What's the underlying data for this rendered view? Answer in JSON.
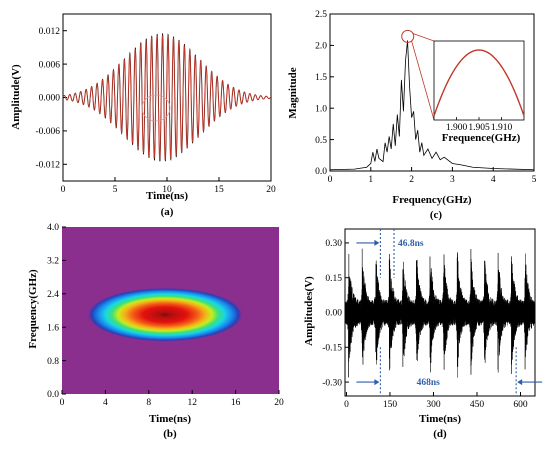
{
  "chart_data": [
    {
      "panel": "(a)",
      "type": "line",
      "xlabel": "Time(ns)",
      "ylabel": "Amplitude(V)",
      "xlim": [
        0,
        20
      ],
      "ylim": [
        -0.015,
        0.015
      ],
      "xticks": [
        0,
        5,
        10,
        15,
        20
      ],
      "yticks": [
        -0.012,
        -0.006,
        0.0,
        0.006,
        0.012
      ],
      "ytick_labels": [
        "-0.012",
        "-0.006",
        "0.000",
        "0.006",
        "0.012"
      ],
      "signal": {
        "carrier_ghz": 1.905,
        "center_ns": 9.5,
        "sigma_ns": 3.6,
        "peak_v": 0.0115
      },
      "series": [
        {
          "color": "#000000"
        },
        {
          "color": "#c0392b"
        }
      ]
    },
    {
      "panel": "(c)",
      "type": "line",
      "xlabel": "Frequency(GHz)",
      "ylabel": "Magnitude",
      "xlim": [
        0,
        5
      ],
      "ylim": [
        0,
        2.5
      ],
      "xticks": [
        0,
        1,
        2,
        3,
        4,
        5
      ],
      "yticks": [
        0.0,
        0.5,
        1.0,
        1.5,
        2.0,
        2.5
      ],
      "ytick_labels": [
        "0.0",
        "0.5",
        "1.0",
        "1.5",
        "2.0",
        "2.5"
      ],
      "x": [
        0.0,
        0.6,
        0.9,
        1.0,
        1.05,
        1.1,
        1.15,
        1.2,
        1.3,
        1.35,
        1.4,
        1.45,
        1.5,
        1.55,
        1.6,
        1.65,
        1.7,
        1.75,
        1.8,
        1.85,
        1.9,
        1.95,
        2.0,
        2.05,
        2.1,
        2.15,
        2.2,
        2.25,
        2.3,
        2.4,
        2.5,
        2.6,
        2.7,
        2.8,
        3.0,
        3.2,
        3.5,
        4.0,
        5.0
      ],
      "y": [
        0.02,
        0.03,
        0.06,
        0.12,
        0.3,
        0.15,
        0.35,
        0.2,
        0.15,
        0.45,
        0.3,
        0.55,
        0.35,
        0.75,
        0.4,
        0.9,
        0.55,
        1.45,
        0.95,
        1.75,
        2.08,
        1.35,
        0.85,
        0.95,
        0.5,
        0.65,
        0.3,
        0.45,
        0.25,
        0.35,
        0.2,
        0.3,
        0.18,
        0.22,
        0.12,
        0.1,
        0.06,
        0.04,
        0.02
      ],
      "color": "#000000",
      "highlight": {
        "x": 1.905,
        "y": 2.08,
        "color": "#c0392b"
      },
      "inset": {
        "xlabel": "Frequence(GHz)",
        "xlim": [
          1.895,
          1.915
        ],
        "xticks": [
          1.9,
          1.905,
          1.91
        ],
        "xtick_labels": [
          "1.900",
          "1.905",
          "1.910"
        ],
        "curve": {
          "type": "parabola",
          "vertex_x": 1.905,
          "color": "#c0392b"
        }
      }
    },
    {
      "panel": "(b)",
      "type": "heatmap",
      "xlabel": "Time(ns)",
      "ylabel": "Frequency(GHz)",
      "xlim": [
        0,
        20
      ],
      "ylim": [
        0,
        4
      ],
      "xticks": [
        0,
        4,
        8,
        12,
        16,
        20
      ],
      "yticks": [
        0.0,
        0.8,
        1.6,
        2.4,
        3.2,
        4.0
      ],
      "ytick_labels": [
        "0.0",
        "0.8",
        "1.6",
        "2.4",
        "3.2",
        "4.0"
      ],
      "blob": {
        "center_ns": 9.5,
        "center_ghz": 1.9,
        "half_width_ns": 7.2,
        "half_height_ghz": 0.65
      },
      "colors": {
        "background": "#8b2f8f",
        "levels": [
          "#1f2fa0",
          "#1a8ff0",
          "#19d8e0",
          "#3ee07a",
          "#e8ec1c",
          "#f7a11a",
          "#ee3a17",
          "#e51010",
          "#9a0f0f"
        ]
      }
    },
    {
      "panel": "(d)",
      "type": "line",
      "xlabel": "Time(ns)",
      "ylabel": "Amplitudes(V)",
      "xlim": [
        -5,
        650
      ],
      "ylim": [
        -0.36,
        0.36
      ],
      "xticks": [
        0,
        150,
        300,
        450,
        600
      ],
      "yticks": [
        -0.3,
        -0.15,
        0.0,
        0.15,
        0.3
      ],
      "ytick_labels": [
        "-0.30",
        "-0.15",
        "0.00",
        "0.15",
        "0.30"
      ],
      "pulses": {
        "period_ns": 46.8,
        "first_ns": 7,
        "count": 14,
        "peak_v": 0.3
      },
      "color": "#000000",
      "annotations": [
        {
          "text": "46.8ns",
          "x1": 117,
          "x2": 164,
          "y": 0.3
        },
        {
          "text": "468ns",
          "x1": 117,
          "x2": 585,
          "y": -0.3
        }
      ],
      "annotation_color": "#2f5fa8"
    }
  ]
}
